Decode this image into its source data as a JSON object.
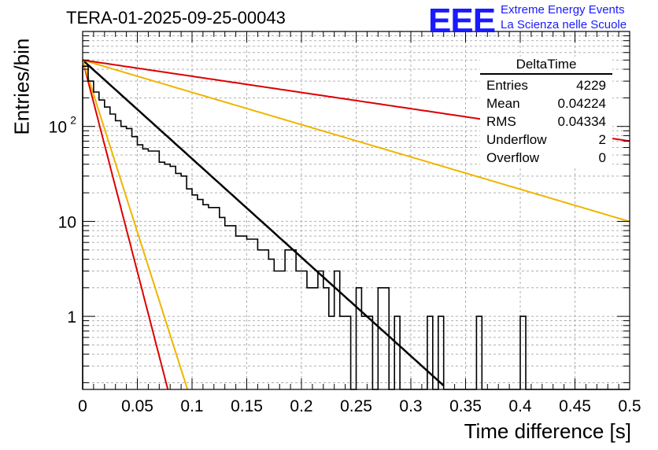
{
  "header": {
    "title": "TERA-01-2025-09-25-00043",
    "logo_text": "EEE",
    "logo_line1": "Extreme Energy Events",
    "logo_line2": "La Scienza nelle Scuole",
    "logo_color": "#1a1aff"
  },
  "stats_box": {
    "name": "DeltaTime",
    "rows": [
      {
        "label": "Entries",
        "value": "4229"
      },
      {
        "label": "Mean",
        "value": "0.04224"
      },
      {
        "label": "RMS",
        "value": "0.04334"
      },
      {
        "label": "Underflow",
        "value": "2"
      },
      {
        "label": "Overflow",
        "value": "0"
      }
    ]
  },
  "chart_data": {
    "type": "line",
    "title": "TERA-01-2025-09-25-00043",
    "xlabel": "Time difference [s]",
    "ylabel": "Entries/bin",
    "xlim": [
      0,
      0.5
    ],
    "ylim": [
      0.17,
      1000
    ],
    "yscale": "log",
    "grid": true,
    "xticks": [
      "0",
      "0.05",
      "0.1",
      "0.15",
      "0.2",
      "0.25",
      "0.3",
      "0.35",
      "0.4",
      "0.45",
      "0.5"
    ],
    "yticks": [
      {
        "value": 1,
        "label": "1"
      },
      {
        "value": 10,
        "label": "10"
      },
      {
        "value": 100,
        "label": "10",
        "exp": "2"
      }
    ],
    "histogram": {
      "name": "DeltaTime",
      "bin_width": 0.005,
      "color": "#000000",
      "values": [
        430,
        300,
        230,
        190,
        160,
        135,
        115,
        100,
        95,
        78,
        64,
        58,
        55,
        55,
        42,
        40,
        38,
        32,
        30,
        22,
        19,
        17,
        15,
        14,
        14,
        11,
        9,
        9,
        7,
        7,
        6.5,
        6.5,
        5,
        5,
        4,
        3,
        3,
        5,
        5,
        3,
        3,
        2,
        2,
        3,
        2,
        1,
        3,
        1,
        1,
        0,
        2,
        1,
        1,
        0,
        2,
        2,
        0,
        1,
        0,
        0,
        0,
        0,
        0,
        1,
        0,
        1,
        0,
        0,
        0,
        0,
        0,
        0,
        1,
        0,
        0,
        0,
        0,
        0,
        0,
        0,
        1,
        0,
        0,
        0,
        0,
        0,
        0,
        0,
        0,
        0,
        0,
        0,
        0,
        0,
        0,
        0,
        0,
        0,
        0,
        0
      ]
    },
    "fits": [
      {
        "name": "fit",
        "color": "#000000",
        "A": 500,
        "tau": 0.0418,
        "x_end": 0.33
      },
      {
        "name": "red-steep",
        "color": "#dd0000",
        "A": 500,
        "tau": 0.00975,
        "x_end": 0.08
      },
      {
        "name": "yellow-steep",
        "color": "#f0b400",
        "A": 500,
        "tau": 0.012,
        "x_end": 0.1
      },
      {
        "name": "yellow-shallow",
        "color": "#f0b400",
        "A": 500,
        "tau": 0.1277,
        "x_end": 0.5
      },
      {
        "name": "red-shallow",
        "color": "#dd0000",
        "A": 500,
        "tau": 0.2545,
        "x_end": 0.5
      }
    ]
  }
}
